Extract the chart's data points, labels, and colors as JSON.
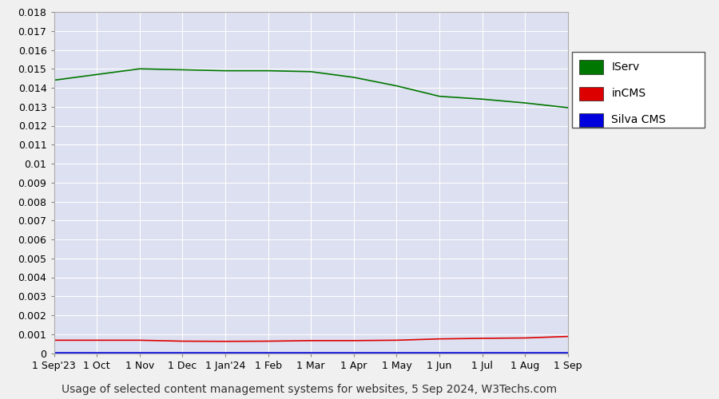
{
  "title": "Usage of selected content management systems for websites, 5 Sep 2024, W3Techs.com",
  "plot_bg_color": "#dde0f0",
  "fig_bg_color": "#f0f0f0",
  "x_labels": [
    "1 Sep'23",
    "1 Oct",
    "1 Nov",
    "1 Dec",
    "1 Jan'24",
    "1 Feb",
    "1 Mar",
    "1 Apr",
    "1 May",
    "1 Jun",
    "1 Jul",
    "1 Aug",
    "1 Sep"
  ],
  "iserv_values": [
    0.0144,
    0.0147,
    0.015,
    0.01495,
    0.0149,
    0.0149,
    0.01485,
    0.01455,
    0.0141,
    0.01355,
    0.0134,
    0.0132,
    0.01295
  ],
  "incms_values": [
    0.00068,
    0.00068,
    0.00068,
    0.00063,
    0.00062,
    0.00063,
    0.00066,
    0.00066,
    0.00068,
    0.00075,
    0.00078,
    0.0008,
    0.00088
  ],
  "silva_values": [
    3e-05,
    3e-05,
    3e-05,
    3e-05,
    3e-05,
    3e-05,
    3e-05,
    3e-05,
    3e-05,
    3e-05,
    3e-05,
    3e-05,
    3e-05
  ],
  "iserv_color": "#007700",
  "incms_color": "#dd0000",
  "silva_color": "#0000dd",
  "ylim": [
    0,
    0.018
  ],
  "yticks": [
    0,
    0.001,
    0.002,
    0.003,
    0.004,
    0.005,
    0.006,
    0.007,
    0.008,
    0.009,
    0.01,
    0.011,
    0.012,
    0.013,
    0.014,
    0.015,
    0.016,
    0.017,
    0.018
  ],
  "ytick_labels": [
    "0",
    "0.001",
    "0.002",
    "0.003",
    "0.004",
    "0.005",
    "0.006",
    "0.007",
    "0.008",
    "0.009",
    "0.01",
    "0.011",
    "0.012",
    "0.013",
    "0.014",
    "0.015",
    "0.016",
    "0.017",
    "0.018"
  ],
  "legend_labels": [
    "IServ",
    "inCMS",
    "Silva CMS"
  ],
  "legend_colors": [
    "#007700",
    "#dd0000",
    "#0000dd"
  ],
  "grid_color": "#ffffff",
  "title_fontsize": 10,
  "tick_fontsize": 9,
  "legend_fontsize": 10
}
